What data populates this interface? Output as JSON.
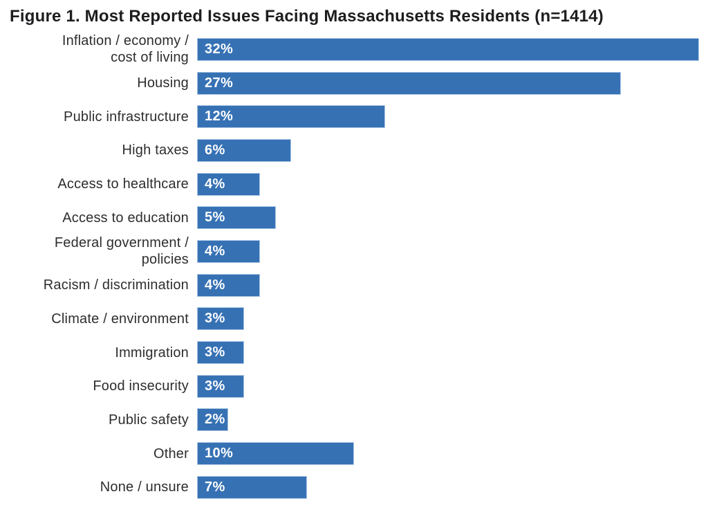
{
  "title": "Figure 1. Most Reported Issues Facing Massachusetts Residents (n=1414)",
  "chart_data": {
    "type": "bar",
    "orientation": "horizontal",
    "title": "Figure 1. Most Reported Issues Facing Massachusetts Residents (n=1414)",
    "sample_size": "n=1414",
    "categories": [
      "Inflation / economy / cost of living",
      "Housing",
      "Public infrastructure",
      "High taxes",
      "Access to healthcare",
      "Access to education",
      "Federal government / policies",
      "Racism / discrimination",
      "Climate / environment",
      "Immigration",
      "Food insecurity",
      "Public safety",
      "Other",
      "None / unsure"
    ],
    "display_labels": [
      "Inflation / economy /\ncost of living",
      "Housing",
      "Public infrastructure",
      "High taxes",
      "Access to healthcare",
      "Access to education",
      "Federal government /\npolicies",
      "Racism / discrimination",
      "Climate / environment",
      "Immigration",
      "Food insecurity",
      "Public safety",
      "Other",
      "None / unsure"
    ],
    "values": [
      32,
      27,
      12,
      6,
      4,
      5,
      4,
      4,
      3,
      3,
      3,
      2,
      10,
      7
    ],
    "value_labels": [
      "32%",
      "27%",
      "12%",
      "6%",
      "4%",
      "5%",
      "4%",
      "4%",
      "3%",
      "3%",
      "3%",
      "2%",
      "10%",
      "7%"
    ],
    "unit": "%",
    "xlim": [
      0,
      32
    ],
    "bar_color": "#3671b4",
    "bar_edge_color": "#a9c5e3",
    "value_label_color": "#ffffff",
    "category_label_color": "#2d2d30",
    "grid": "off",
    "legend": "none",
    "axes_visible": false,
    "value_label_position": "inside-left"
  }
}
